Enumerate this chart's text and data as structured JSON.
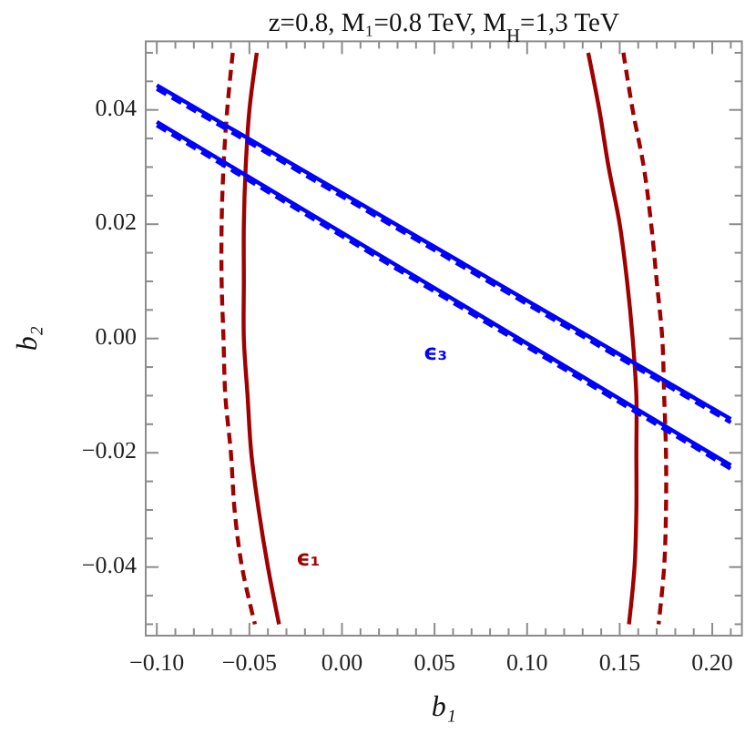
{
  "chart_data": {
    "type": "line",
    "title": "z=0.8, M₁=0.8 TeV, M$_{H}$=1,3 TeV",
    "xlabel": "b₁",
    "ylabel": "b₂",
    "xlim": [
      -0.106,
      0.216
    ],
    "ylim": [
      -0.052,
      0.052
    ],
    "xticks": [
      {
        "value": -0.1,
        "label": "−0.10"
      },
      {
        "value": -0.09,
        "label": null
      },
      {
        "value": -0.08,
        "label": null
      },
      {
        "value": -0.07,
        "label": null
      },
      {
        "value": -0.06,
        "label": null
      },
      {
        "value": -0.05,
        "label": "−0.05"
      },
      {
        "value": -0.04,
        "label": null
      },
      {
        "value": -0.03,
        "label": null
      },
      {
        "value": -0.02,
        "label": null
      },
      {
        "value": -0.01,
        "label": null
      },
      {
        "value": 0,
        "label": "0.00"
      },
      {
        "value": 0.01,
        "label": null
      },
      {
        "value": 0.02,
        "label": null
      },
      {
        "value": 0.03,
        "label": null
      },
      {
        "value": 0.04,
        "label": null
      },
      {
        "value": 0.05,
        "label": "0.05"
      },
      {
        "value": 0.06,
        "label": null
      },
      {
        "value": 0.07,
        "label": null
      },
      {
        "value": 0.08,
        "label": null
      },
      {
        "value": 0.09,
        "label": null
      },
      {
        "value": 0.1,
        "label": "0.10"
      },
      {
        "value": 0.11,
        "label": null
      },
      {
        "value": 0.12,
        "label": null
      },
      {
        "value": 0.13,
        "label": null
      },
      {
        "value": 0.14,
        "label": null
      },
      {
        "value": 0.15,
        "label": "0.15"
      },
      {
        "value": 0.16,
        "label": null
      },
      {
        "value": 0.17,
        "label": null
      },
      {
        "value": 0.18,
        "label": null
      },
      {
        "value": 0.19,
        "label": null
      },
      {
        "value": 0.2,
        "label": "0.20"
      },
      {
        "value": 0.21,
        "label": null
      }
    ],
    "yticks": [
      {
        "value": -0.05,
        "label": null
      },
      {
        "value": -0.045,
        "label": null
      },
      {
        "value": -0.04,
        "label": "−0.04"
      },
      {
        "value": -0.035,
        "label": null
      },
      {
        "value": -0.03,
        "label": null
      },
      {
        "value": -0.025,
        "label": null
      },
      {
        "value": -0.02,
        "label": "−0.02"
      },
      {
        "value": -0.015,
        "label": null
      },
      {
        "value": -0.01,
        "label": null
      },
      {
        "value": -0.005,
        "label": null
      },
      {
        "value": 0,
        "label": "0.00"
      },
      {
        "value": 0.005,
        "label": null
      },
      {
        "value": 0.01,
        "label": null
      },
      {
        "value": 0.015,
        "label": null
      },
      {
        "value": 0.02,
        "label": "0.02"
      },
      {
        "value": 0.025,
        "label": null
      },
      {
        "value": 0.03,
        "label": null
      },
      {
        "value": 0.035,
        "label": null
      },
      {
        "value": 0.04,
        "label": "0.04"
      },
      {
        "value": 0.045,
        "label": null
      },
      {
        "value": 0.05,
        "label": null
      }
    ],
    "series": [
      {
        "name": "ϵ₁",
        "color": "#a00000",
        "line_style": "solid",
        "x": [
          -0.046,
          -0.05,
          -0.052,
          -0.053,
          -0.053,
          -0.053,
          -0.051,
          -0.049,
          -0.045,
          -0.04,
          -0.034
        ],
        "values": [
          0.05,
          0.04,
          0.03,
          0.02,
          0.01,
          0,
          -0.01,
          -0.02,
          -0.03,
          -0.04,
          -0.05
        ]
      },
      {
        "color": "#a00000",
        "line_style": "dashed",
        "x": [
          -0.059,
          -0.062,
          -0.064,
          -0.065,
          -0.065,
          -0.064,
          -0.063,
          -0.06,
          -0.058,
          -0.054,
          -0.047
        ],
        "values": [
          0.05,
          0.04,
          0.03,
          0.02,
          0.01,
          0,
          -0.01,
          -0.02,
          -0.03,
          -0.04,
          -0.05
        ]
      },
      {
        "color": "#a00000",
        "line_style": "solid",
        "x": [
          0.133,
          0.139,
          0.144,
          0.15,
          0.154,
          0.157,
          0.159,
          0.159,
          0.159,
          0.158,
          0.155
        ],
        "values": [
          0.05,
          0.04,
          0.03,
          0.02,
          0.01,
          0,
          -0.01,
          -0.02,
          -0.03,
          -0.04,
          -0.05
        ]
      },
      {
        "color": "#a00000",
        "line_style": "dashed",
        "x": [
          0.152,
          0.157,
          0.163,
          0.167,
          0.17,
          0.173,
          0.174,
          0.175,
          0.175,
          0.174,
          0.171
        ],
        "values": [
          0.05,
          0.04,
          0.03,
          0.02,
          0.01,
          0,
          -0.01,
          -0.02,
          -0.03,
          -0.04,
          -0.05
        ]
      },
      {
        "color": "#0000ff",
        "line_style": "solid",
        "x": [
          -0.1,
          0.21
        ],
        "values": [
          0.0443,
          -0.0141
        ]
      },
      {
        "color": "#0000ff",
        "line_style": "dashed",
        "x": [
          -0.1,
          0.21
        ],
        "values": [
          0.0437,
          -0.0147
        ]
      },
      {
        "name": "ϵ₃",
        "color": "#0000ff",
        "line_style": "solid",
        "x": [
          -0.1,
          0.21
        ],
        "values": [
          0.0379,
          -0.0222
        ]
      },
      {
        "color": "#0000ff",
        "line_style": "dashed",
        "x": [
          -0.1,
          0.21
        ],
        "values": [
          0.0373,
          -0.0228
        ]
      }
    ]
  }
}
